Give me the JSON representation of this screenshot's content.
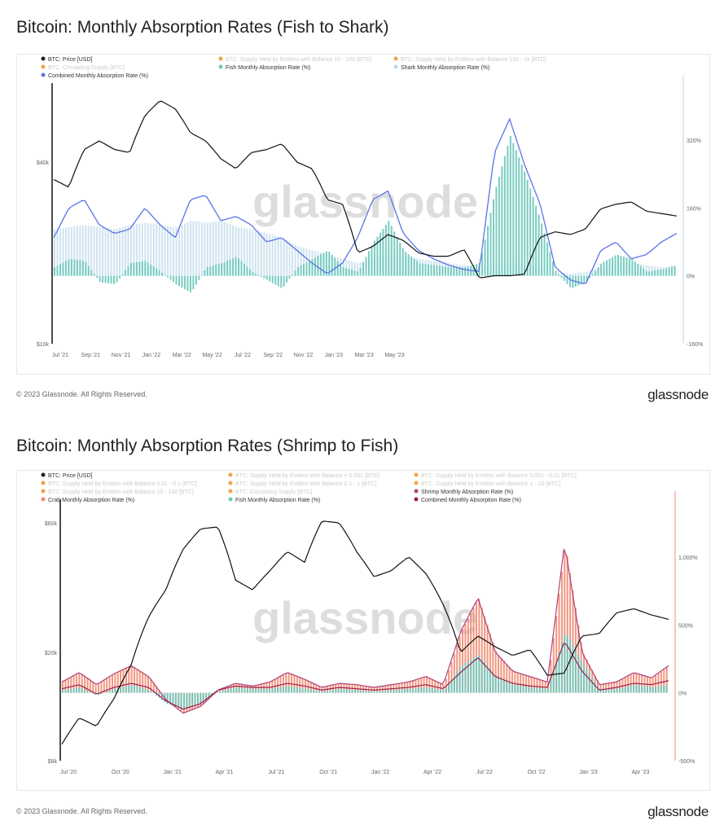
{
  "charts": [
    {
      "title": "Bitcoin: Monthly Absorption Rates (Fish to Shark)",
      "footer": "© 2023 Glassnode. All Rights Reserved.",
      "brand": "glassnode",
      "watermark": "glassnode"
    },
    {
      "title": "Bitcoin: Monthly Absorption Rates (Shrimp to Fish)",
      "footer": "© 2023 Glassnode. All Rights Reserved.",
      "brand": "glassnode",
      "watermark": "glassnode"
    }
  ],
  "chart_data": [
    {
      "type": "line",
      "x_start": "2021-07-01",
      "x_step": "month",
      "x_ticks": [
        "Jul '21",
        "Sep '21",
        "Nov '21",
        "Jan '22",
        "Mar '22",
        "May '22",
        "Jul '22",
        "Sep '22",
        "Nov '22",
        "Jan '23",
        "Mar '23",
        "May '23"
      ],
      "y_left": {
        "scale": "log",
        "ticks": [
          "$10k",
          "$40k"
        ],
        "tick_values": [
          10000,
          40000
        ]
      },
      "y_right": {
        "ticks": [
          "-160%",
          "0%",
          "160%",
          "320%"
        ],
        "tick_values": [
          -160,
          0,
          160,
          320
        ]
      },
      "legend": [
        {
          "label": "BTC: Price [USD]",
          "color": "#222222",
          "active": true
        },
        {
          "label": "BTC: Supply Held by Entities with Balance 10 - 100 [BTC]",
          "color": "#f7931a",
          "active": false
        },
        {
          "label": "BTC: Supply Held by Entities with Balance 100 - 1k [BTC]",
          "color": "#f7931a",
          "active": false
        },
        {
          "label": "BTC: Circulating Supply [BTC]",
          "color": "#f7931a",
          "active": false
        },
        {
          "label": "Fish Monthly Absorption Rate (%)",
          "color": "#6cc8bd",
          "active": true
        },
        {
          "label": "Shark Monthly Absorption Rate (%)",
          "color": "#b9d7e8",
          "active": true
        },
        {
          "label": "Combined Monthly Absorption Rate (%)",
          "color": "#5b73e8",
          "active": true
        }
      ],
      "series": [
        {
          "name": "BTC: Price [USD]",
          "axis": "left",
          "values": [
            35000,
            33000,
            44000,
            47000,
            44000,
            43000,
            57000,
            64000,
            60000,
            50000,
            47000,
            41000,
            38000,
            43000,
            44000,
            46000,
            40000,
            38000,
            30000,
            29000,
            20000,
            21000,
            23000,
            22000,
            20000,
            19500,
            19500,
            20500,
            16500,
            16800,
            16800,
            17000,
            22500,
            23500,
            23000,
            24000,
            28000,
            29000,
            29500,
            27500,
            27000,
            26500
          ]
        },
        {
          "name": "Fish Monthly Absorption Rate (%)",
          "axis": "right",
          "values": [
            20,
            40,
            35,
            -15,
            -20,
            30,
            35,
            10,
            -20,
            -40,
            20,
            30,
            45,
            10,
            -10,
            -30,
            20,
            40,
            60,
            20,
            10,
            80,
            130,
            60,
            30,
            25,
            20,
            20,
            30,
            200,
            330,
            240,
            130,
            10,
            -30,
            -15,
            30,
            50,
            40,
            10,
            15,
            25
          ]
        },
        {
          "name": "Shark Monthly Absorption Rate (%)",
          "axis": "right",
          "values": [
            110,
            115,
            120,
            115,
            110,
            120,
            125,
            120,
            115,
            130,
            125,
            130,
            115,
            110,
            100,
            90,
            70,
            60,
            50,
            40,
            30,
            40,
            50,
            45,
            40,
            35,
            30,
            25,
            20,
            25,
            30,
            25,
            20,
            10,
            5,
            10,
            20,
            30,
            30,
            25,
            20,
            25
          ]
        },
        {
          "name": "Combined Monthly Absorption Rate (%)",
          "axis": "right",
          "values": [
            90,
            160,
            180,
            120,
            100,
            110,
            160,
            120,
            90,
            180,
            190,
            130,
            140,
            120,
            80,
            90,
            60,
            30,
            5,
            30,
            90,
            180,
            200,
            100,
            60,
            40,
            25,
            15,
            10,
            290,
            370,
            260,
            170,
            20,
            -10,
            -20,
            60,
            80,
            40,
            50,
            80,
            100
          ]
        }
      ]
    },
    {
      "type": "line",
      "x_start": "2020-07-01",
      "x_step": "month",
      "x_ticks": [
        "Jul '20",
        "Oct '20",
        "Jan '21",
        "Apr '21",
        "Jul '21",
        "Oct '21",
        "Jan '22",
        "Apr '22",
        "Jul '22",
        "Oct '22",
        "Jan '23",
        "Apr '23"
      ],
      "y_left": {
        "scale": "log",
        "ticks": [
          "$8k",
          "$20k",
          "$60k"
        ],
        "tick_values": [
          8000,
          20000,
          60000
        ]
      },
      "y_right": {
        "ticks": [
          "-500%",
          "0%",
          "500%",
          "1,000%"
        ],
        "tick_values": [
          -500,
          0,
          500,
          1000
        ]
      },
      "legend": [
        {
          "label": "BTC: Price [USD]",
          "color": "#222222",
          "active": true
        },
        {
          "label": "BTC: Supply Held by Entities with Balance < 0.001 [BTC]",
          "color": "#f7931a",
          "active": false
        },
        {
          "label": "BTC: Supply Held by Entities with Balance 0.001 - 0.01 [BTC]",
          "color": "#f7931a",
          "active": false
        },
        {
          "label": "BTC: Supply Held by Entities with Balance 0.01 - 0.1 [BTC]",
          "color": "#f7931a",
          "active": false
        },
        {
          "label": "BTC: Supply Held by Entities with Balance 0.1 - 1 [BTC]",
          "color": "#f7931a",
          "active": false
        },
        {
          "label": "BTC: Supply Held by Entities with Balance 1 - 10 [BTC]",
          "color": "#f7931a",
          "active": false
        },
        {
          "label": "BTC: Supply Held by Entities with Balance 10 - 100 [BTC]",
          "color": "#f7931a",
          "active": false
        },
        {
          "label": "BTC: Circulating Supply [BTC]",
          "color": "#f7931a",
          "active": false
        },
        {
          "label": "Shrimp Monthly Absorption Rate (%)",
          "color": "#b0417a",
          "active": true
        },
        {
          "label": "Crab Monthly Absorption Rate (%)",
          "color": "#f08a72",
          "active": true
        },
        {
          "label": "Fish Monthly Absorption Rate (%)",
          "color": "#6cc8bd",
          "active": true
        },
        {
          "label": "Combined Monthly Absorption Rate (%)",
          "color": "#9c1f4f",
          "active": true
        }
      ],
      "series": [
        {
          "name": "BTC: Price [USD]",
          "axis": "left",
          "values": [
            9200,
            11500,
            10700,
            13500,
            18000,
            27000,
            34000,
            48000,
            57000,
            58000,
            37000,
            34000,
            40000,
            47000,
            43000,
            61000,
            60000,
            47000,
            38000,
            40000,
            45000,
            39000,
            30000,
            20000,
            23000,
            21000,
            19500,
            20500,
            16500,
            16800,
            23000,
            23500,
            28000,
            29000,
            27500,
            26500
          ]
        },
        {
          "name": "Shrimp Monthly Absorption Rate (%)",
          "axis": "right",
          "values": [
            80,
            150,
            60,
            140,
            200,
            120,
            -50,
            -150,
            -100,
            20,
            70,
            50,
            80,
            150,
            100,
            40,
            70,
            60,
            40,
            60,
            80,
            120,
            60,
            450,
            700,
            300,
            160,
            120,
            80,
            1100,
            300,
            60,
            80,
            150,
            110,
            200
          ]
        },
        {
          "name": "Crab Monthly Absorption Rate (%)",
          "axis": "right",
          "values": [
            20,
            40,
            -20,
            30,
            60,
            20,
            -80,
            -120,
            -80,
            10,
            40,
            30,
            30,
            50,
            30,
            10,
            30,
            20,
            10,
            20,
            30,
            40,
            20,
            200,
            280,
            120,
            60,
            40,
            30,
            450,
            220,
            20,
            30,
            60,
            40,
            60
          ]
        },
        {
          "name": "Fish Monthly Absorption Rate (%)",
          "axis": "right",
          "values": [
            10,
            20,
            -30,
            20,
            40,
            10,
            -150,
            -200,
            -120,
            -10,
            30,
            20,
            20,
            40,
            20,
            0,
            20,
            10,
            -10,
            10,
            20,
            30,
            10,
            80,
            150,
            60,
            30,
            20,
            20,
            200,
            120,
            -20,
            10,
            40,
            20,
            30
          ]
        },
        {
          "name": "Combined Monthly Absorption Rate (%)",
          "axis": "right",
          "values": [
            30,
            60,
            -10,
            40,
            70,
            40,
            -60,
            -120,
            -80,
            20,
            50,
            40,
            40,
            70,
            50,
            20,
            40,
            30,
            20,
            30,
            40,
            60,
            30,
            150,
            260,
            120,
            70,
            50,
            40,
            380,
            160,
            20,
            40,
            70,
            60,
            90
          ]
        }
      ]
    }
  ]
}
